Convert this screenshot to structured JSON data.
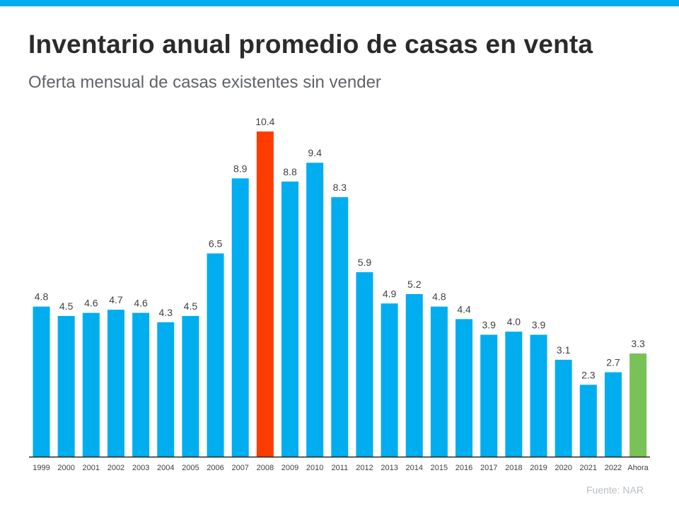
{
  "header": {
    "title": "Inventario anual promedio de casas en venta",
    "subtitle": "Oferta mensual de casas existentes sin vender"
  },
  "source": "Fuente:  NAR",
  "colors": {
    "bar_default": "#00adef",
    "bar_peak": "#ff3c00",
    "bar_current": "#78c257",
    "top_bar": "#00adef"
  },
  "chart_data": {
    "type": "bar",
    "title": "Inventario anual promedio de casas en venta",
    "subtitle": "Oferta mensual de casas existentes sin vender",
    "xlabel": "",
    "ylabel": "",
    "categories": [
      "1999",
      "2000",
      "2001",
      "2002",
      "2003",
      "2004",
      "2005",
      "2006",
      "2007",
      "2008",
      "2009",
      "2010",
      "2011",
      "2012",
      "2013",
      "2014",
      "2015",
      "2016",
      "2017",
      "2018",
      "2019",
      "2020",
      "2021",
      "2022",
      "Ahora"
    ],
    "values": [
      4.8,
      4.5,
      4.6,
      4.7,
      4.6,
      4.3,
      4.5,
      6.5,
      8.9,
      10.4,
      8.8,
      9.4,
      8.3,
      5.9,
      4.9,
      5.2,
      4.8,
      4.4,
      3.9,
      4.0,
      3.9,
      3.1,
      2.3,
      2.7,
      3.3
    ],
    "value_labels": [
      "4.8",
      "4.5",
      "4.6",
      "4.7",
      "4.6",
      "4.3",
      "4.5",
      "6.5",
      "8.9",
      "10.4",
      "8.8",
      "9.4",
      "8.3",
      "5.9",
      "4.9",
      "5.2",
      "4.8",
      "4.4",
      "3.9",
      "4.0",
      "3.9",
      "3.1",
      "2.3",
      "2.7",
      "3.3"
    ],
    "highlight": {
      "2008": "bar_peak",
      "Ahora": "bar_current"
    },
    "ylim": [
      0,
      10.4
    ],
    "grid": false,
    "legend": "none"
  }
}
